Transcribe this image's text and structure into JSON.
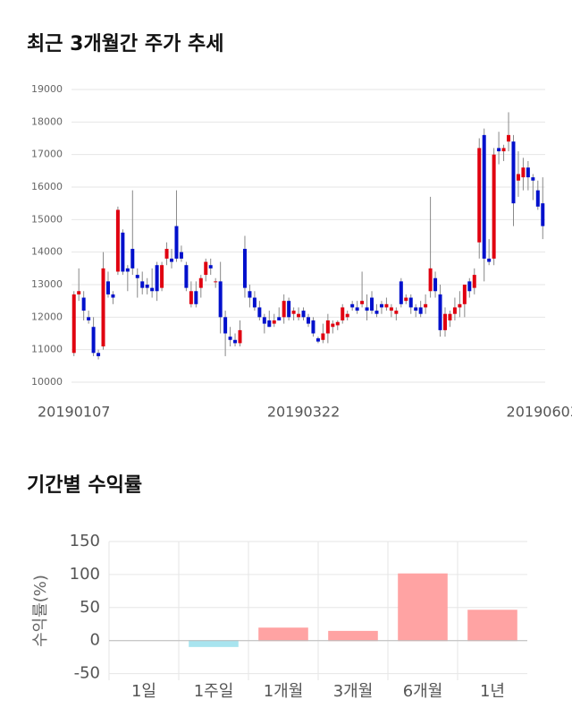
{
  "chart_data": [
    {
      "type": "candlestick",
      "title": "최근 3개월간 주가 추세",
      "categories": [
        "20190107",
        null,
        null,
        null,
        null,
        null,
        null,
        null,
        null,
        null,
        null,
        null,
        null,
        null,
        null,
        null,
        null,
        null,
        null,
        null,
        null,
        null,
        null,
        null,
        null,
        null,
        null,
        null,
        null,
        null,
        null,
        null,
        null,
        null,
        null,
        null,
        null,
        null,
        null,
        null,
        null,
        null,
        null,
        null,
        null,
        null,
        null,
        "20190322",
        null,
        null,
        null,
        null,
        null,
        null,
        null,
        null,
        null,
        null,
        null,
        null,
        null,
        null,
        null,
        null,
        null,
        null,
        null,
        null,
        null,
        null,
        null,
        null,
        null,
        null,
        null,
        null,
        null,
        null,
        null,
        null,
        null,
        null,
        null,
        null,
        null,
        null,
        null,
        null,
        null,
        null,
        null,
        null,
        null,
        null,
        null,
        null,
        "20190603"
      ],
      "open": [
        10900,
        12700,
        12600,
        12000,
        11700,
        10900,
        11100,
        13100,
        12700,
        13400,
        14600,
        13500,
        14100,
        13300,
        13100,
        13000,
        12900,
        13600,
        12900,
        13800,
        13800,
        14800,
        14000,
        13600,
        12400,
        12800,
        12900,
        13300,
        13600,
        13100,
        13100,
        12000,
        11400,
        11300,
        11200,
        14100,
        12800,
        12600,
        12300,
        12000,
        11900,
        11800,
        12000,
        12000,
        12500,
        12100,
        12000,
        12200,
        12000,
        11900,
        11350,
        11300,
        11500,
        11700,
        11750,
        11900,
        12000,
        12400,
        12300,
        12400,
        12300,
        12600,
        12200,
        12400,
        12300,
        12200,
        12100,
        13100,
        12500,
        12600,
        12300,
        12300,
        12300,
        12800,
        13200,
        12700,
        11600,
        11900,
        12100,
        12300,
        12400,
        13100,
        12900,
        14300,
        17600,
        13800,
        13800,
        17200,
        17100,
        17400,
        17400,
        16200,
        16300,
        16600,
        16300,
        15900,
        15500
      ],
      "high": [
        12800,
        13500,
        12800,
        12200,
        12000,
        11000,
        14000,
        13400,
        12800,
        15400,
        14700,
        13600,
        15900,
        13500,
        13400,
        13200,
        13500,
        13700,
        13700,
        14300,
        14100,
        15900,
        14200,
        13700,
        13100,
        13100,
        13300,
        13800,
        13800,
        13200,
        13700,
        12200,
        11700,
        11500,
        11900,
        14500,
        13000,
        12800,
        12500,
        12100,
        12200,
        12100,
        12300,
        12700,
        12600,
        12300,
        12300,
        12300,
        12100,
        12000,
        11400,
        11800,
        12100,
        11900,
        11900,
        12400,
        12200,
        12500,
        12500,
        13400,
        12700,
        12800,
        12400,
        12500,
        12600,
        12400,
        12300,
        13200,
        12700,
        12700,
        12400,
        12500,
        12700,
        15700,
        13400,
        13000,
        12300,
        12200,
        12600,
        12800,
        13000,
        13200,
        13500,
        17500,
        17800,
        14400,
        17200,
        17700,
        17300,
        18300,
        17600,
        17100,
        16900,
        16800,
        16400,
        16200,
        16300
      ],
      "low": [
        10800,
        12500,
        11900,
        11800,
        10800,
        10700,
        11000,
        12600,
        12400,
        13300,
        13300,
        12800,
        13300,
        12600,
        12700,
        12700,
        12600,
        12500,
        12800,
        13600,
        13500,
        13700,
        13700,
        12800,
        12300,
        12300,
        12600,
        13100,
        13300,
        12900,
        11500,
        10800,
        11100,
        11100,
        11100,
        12600,
        12300,
        12200,
        11900,
        11500,
        11700,
        11700,
        11900,
        11800,
        11900,
        11900,
        11900,
        11900,
        11700,
        11400,
        11200,
        11200,
        11200,
        11500,
        11600,
        11800,
        11900,
        12200,
        12100,
        12300,
        11900,
        12100,
        12000,
        12100,
        12200,
        12000,
        11900,
        12300,
        12400,
        12100,
        12000,
        12000,
        12100,
        12600,
        12600,
        11400,
        11400,
        11700,
        11900,
        12000,
        12000,
        12600,
        12700,
        13800,
        13100,
        13600,
        13600,
        16700,
        16800,
        17100,
        14800,
        15700,
        15900,
        15900,
        15600,
        15300,
        14400
      ],
      "close": [
        12700,
        12800,
        12200,
        11900,
        10900,
        10800,
        13500,
        12700,
        12600,
        15300,
        13400,
        13400,
        13500,
        13200,
        12900,
        12900,
        12800,
        12800,
        13600,
        14100,
        13700,
        13800,
        13800,
        12900,
        12800,
        12400,
        13200,
        13700,
        13500,
        13100,
        12000,
        11500,
        11300,
        11200,
        11600,
        12900,
        12600,
        12300,
        12000,
        11800,
        11700,
        11900,
        11900,
        12500,
        12000,
        12200,
        12100,
        12000,
        11800,
        11500,
        11250,
        11500,
        11900,
        11800,
        11850,
        12300,
        12100,
        12300,
        12200,
        12500,
        12200,
        12200,
        12100,
        12300,
        12400,
        12300,
        12200,
        12400,
        12600,
        12300,
        12200,
        12100,
        12400,
        13500,
        12800,
        11600,
        12100,
        12100,
        12300,
        12400,
        13000,
        12800,
        13300,
        17200,
        13800,
        13700,
        17000,
        17100,
        17200,
        17600,
        15500,
        16400,
        16600,
        16300,
        16200,
        15400,
        14800
      ],
      "up_color": "#e00010",
      "down_color": "#0010cc",
      "ylim": [
        10000,
        19000
      ],
      "yticks": [
        10000,
        11000,
        12000,
        13000,
        14000,
        15000,
        16000,
        17000,
        18000,
        19000
      ],
      "grid": true
    },
    {
      "type": "bar",
      "title": "기간별 수익률",
      "y_label": "수익률(%)",
      "categories": [
        "1일",
        "1주일",
        "1개월",
        "3개월",
        "6개월",
        "1년"
      ],
      "values": [
        0,
        -9,
        19,
        14,
        101,
        46
      ],
      "colors": [
        "#ffa3a3",
        "#a8e4ef",
        "#ffa3a3",
        "#ffa3a3",
        "#ffa3a3",
        "#ffa3a3"
      ],
      "ylim": [
        -60,
        150
      ],
      "yticks": [
        -50,
        0,
        50,
        100,
        150
      ],
      "grid": true
    }
  ]
}
